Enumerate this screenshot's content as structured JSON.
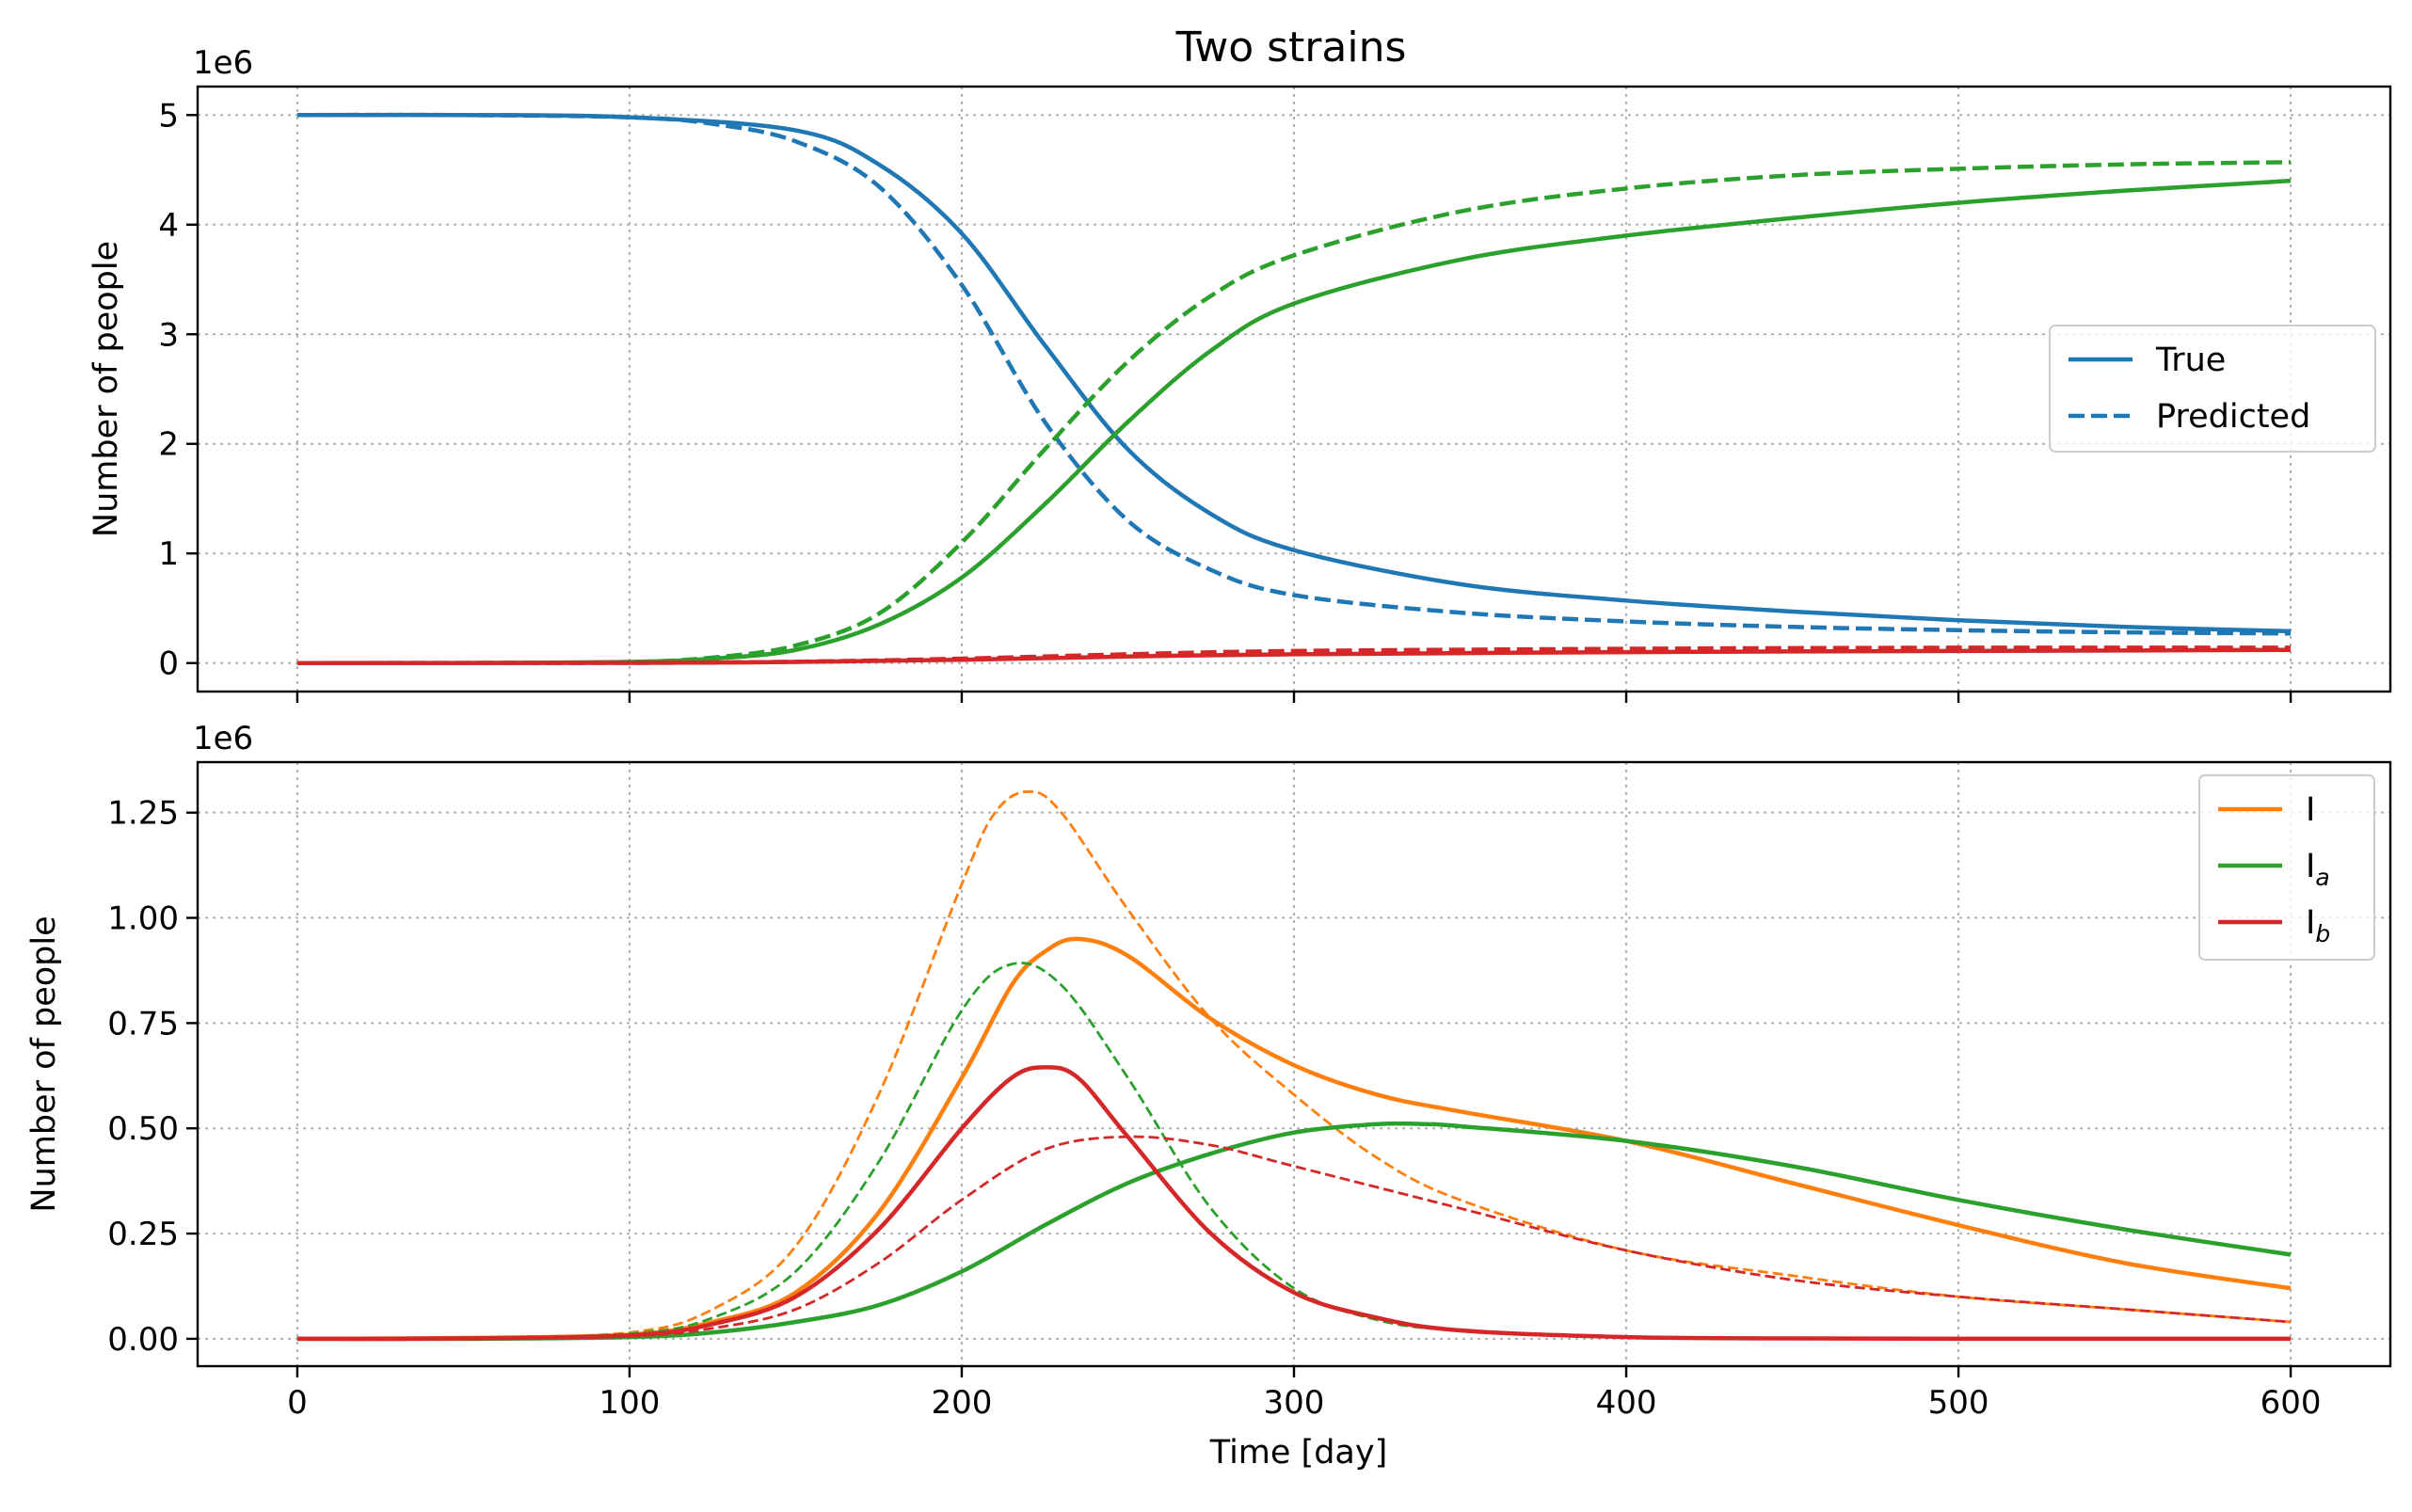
{
  "figure": {
    "title": "Two strains"
  },
  "colors": {
    "blue": "#1f77b4",
    "orange": "#ff7f0e",
    "green": "#2ca02c",
    "red": "#d62728"
  },
  "chart_data": [
    {
      "type": "line",
      "title": "Two strains",
      "xlabel": "",
      "ylabel": "Number of people",
      "y_offset_label": "1e6",
      "xlim": [
        -30,
        630
      ],
      "ylim": [
        -0.26,
        5.26
      ],
      "x_ticks": [
        0,
        100,
        200,
        300,
        400,
        500,
        600
      ],
      "x_tick_labels_visible": false,
      "y_ticks": [
        0,
        1,
        2,
        3,
        4,
        5
      ],
      "y_tick_labels": [
        "0",
        "1",
        "2",
        "3",
        "4",
        "5"
      ],
      "grid": true,
      "legend_position": "center-right",
      "legend": [
        {
          "label": "True",
          "style": "solid",
          "color": "#1f77b4"
        },
        {
          "label": "Predicted",
          "style": "dashed",
          "color": "#1f77b4"
        }
      ],
      "series": [
        {
          "color": "#1f77b4",
          "style": "solid",
          "x": [
            0,
            50,
            100,
            150,
            175,
            200,
            225,
            250,
            275,
            300,
            350,
            400,
            450,
            500,
            550,
            600
          ],
          "values": [
            5.0,
            5.0,
            4.98,
            4.86,
            4.55,
            3.92,
            2.9,
            1.95,
            1.36,
            1.03,
            0.72,
            0.57,
            0.47,
            0.39,
            0.33,
            0.29
          ]
        },
        {
          "color": "#1f77b4",
          "style": "dashed",
          "x": [
            0,
            50,
            100,
            125,
            150,
            175,
            200,
            225,
            250,
            275,
            300,
            350,
            400,
            450,
            500,
            550,
            600
          ],
          "values": [
            5.0,
            5.0,
            4.98,
            4.92,
            4.76,
            4.35,
            3.45,
            2.2,
            1.3,
            0.85,
            0.62,
            0.46,
            0.38,
            0.33,
            0.3,
            0.28,
            0.27
          ]
        },
        {
          "color": "#2ca02c",
          "style": "solid",
          "x": [
            0,
            50,
            100,
            125,
            150,
            175,
            200,
            225,
            250,
            275,
            300,
            350,
            400,
            450,
            500,
            550,
            600
          ],
          "values": [
            0.0,
            0.0,
            0.01,
            0.04,
            0.12,
            0.35,
            0.78,
            1.45,
            2.2,
            2.85,
            3.28,
            3.68,
            3.9,
            4.06,
            4.2,
            4.31,
            4.4
          ]
        },
        {
          "color": "#2ca02c",
          "style": "dashed",
          "x": [
            0,
            50,
            100,
            125,
            150,
            175,
            200,
            225,
            250,
            275,
            300,
            350,
            400,
            450,
            500,
            550,
            600
          ],
          "values": [
            0.0,
            0.0,
            0.01,
            0.05,
            0.16,
            0.45,
            1.1,
            1.95,
            2.75,
            3.35,
            3.72,
            4.12,
            4.33,
            4.45,
            4.51,
            4.55,
            4.57
          ]
        },
        {
          "color": "#d62728",
          "style": "solid",
          "x": [
            0,
            100,
            150,
            200,
            250,
            300,
            400,
            500,
            600
          ],
          "values": [
            0.0,
            0.002,
            0.01,
            0.03,
            0.06,
            0.08,
            0.1,
            0.11,
            0.12
          ]
        },
        {
          "color": "#d62728",
          "style": "dashed",
          "x": [
            0,
            100,
            150,
            200,
            250,
            300,
            400,
            500,
            600
          ],
          "values": [
            0.0,
            0.002,
            0.012,
            0.04,
            0.08,
            0.11,
            0.13,
            0.14,
            0.14
          ]
        }
      ]
    },
    {
      "type": "line",
      "title": "",
      "xlabel": "Time [day]",
      "ylabel": "Number of people",
      "y_offset_label": "1e6",
      "xlim": [
        -30,
        630
      ],
      "ylim": [
        -0.065,
        1.37
      ],
      "x_ticks": [
        0,
        100,
        200,
        300,
        400,
        500,
        600
      ],
      "x_tick_labels": [
        "0",
        "100",
        "200",
        "300",
        "400",
        "500",
        "600"
      ],
      "y_ticks": [
        0,
        0.25,
        0.5,
        0.75,
        1.0,
        1.25
      ],
      "y_tick_labels": [
        "0.00",
        "0.25",
        "0.50",
        "0.75",
        "1.00",
        "1.25"
      ],
      "grid": true,
      "legend_position": "top-right",
      "legend": [
        {
          "label": "I",
          "sub": "",
          "style": "solid",
          "color": "#ff7f0e"
        },
        {
          "label": "I",
          "sub": "a",
          "style": "solid",
          "color": "#2ca02c"
        },
        {
          "label": "I",
          "sub": "b",
          "style": "solid",
          "color": "#d62728"
        }
      ],
      "series": [
        {
          "color": "#ff7f0e",
          "style": "solid",
          "width": 4.5,
          "x": [
            0,
            50,
            100,
            125,
            150,
            175,
            200,
            215,
            225,
            235,
            250,
            275,
            300,
            325,
            350,
            400,
            450,
            500,
            550,
            600
          ],
          "values": [
            0.0,
            0.002,
            0.01,
            0.04,
            0.11,
            0.3,
            0.62,
            0.84,
            0.92,
            0.95,
            0.91,
            0.76,
            0.65,
            0.58,
            0.54,
            0.47,
            0.37,
            0.27,
            0.18,
            0.12
          ]
        },
        {
          "color": "#ff7f0e",
          "style": "dashed",
          "width": 2.8,
          "x": [
            0,
            50,
            100,
            125,
            150,
            175,
            200,
            210,
            220,
            230,
            250,
            275,
            300,
            325,
            350,
            400,
            450,
            500,
            550,
            600
          ],
          "values": [
            0.0,
            0.002,
            0.015,
            0.07,
            0.22,
            0.58,
            1.08,
            1.25,
            1.3,
            1.25,
            1.02,
            0.76,
            0.58,
            0.43,
            0.33,
            0.21,
            0.15,
            0.1,
            0.07,
            0.04
          ]
        },
        {
          "color": "#2ca02c",
          "style": "solid",
          "width": 4.5,
          "x": [
            0,
            50,
            100,
            125,
            150,
            175,
            200,
            225,
            250,
            275,
            300,
            325,
            340,
            350,
            400,
            450,
            500,
            550,
            600
          ],
          "values": [
            0.0,
            0.0,
            0.004,
            0.015,
            0.04,
            0.08,
            0.16,
            0.27,
            0.37,
            0.44,
            0.49,
            0.51,
            0.51,
            0.505,
            0.47,
            0.41,
            0.33,
            0.26,
            0.2
          ]
        },
        {
          "color": "#2ca02c",
          "style": "dashed",
          "width": 2.8,
          "x": [
            0,
            50,
            100,
            125,
            150,
            175,
            200,
            215,
            230,
            250,
            275,
            300,
            325,
            350,
            400,
            450,
            500,
            550,
            600
          ],
          "values": [
            0.0,
            0.002,
            0.012,
            0.05,
            0.16,
            0.42,
            0.78,
            0.89,
            0.84,
            0.62,
            0.31,
            0.12,
            0.045,
            0.02,
            0.004,
            0.001,
            0.0,
            0.0,
            0.0
          ]
        },
        {
          "color": "#d62728",
          "style": "solid",
          "width": 4.5,
          "x": [
            0,
            50,
            100,
            125,
            150,
            175,
            200,
            215,
            225,
            235,
            250,
            275,
            300,
            325,
            350,
            400,
            450,
            500,
            550,
            600
          ],
          "values": [
            0.0,
            0.001,
            0.008,
            0.035,
            0.1,
            0.26,
            0.5,
            0.62,
            0.645,
            0.62,
            0.48,
            0.25,
            0.11,
            0.05,
            0.02,
            0.004,
            0.001,
            0.0,
            0.0,
            0.0
          ]
        },
        {
          "color": "#d62728",
          "style": "dashed",
          "width": 2.8,
          "x": [
            0,
            50,
            100,
            125,
            150,
            175,
            200,
            225,
            250,
            275,
            300,
            350,
            400,
            450,
            500,
            550,
            600
          ],
          "values": [
            0.0,
            0.001,
            0.006,
            0.025,
            0.07,
            0.18,
            0.33,
            0.45,
            0.48,
            0.46,
            0.41,
            0.31,
            0.21,
            0.14,
            0.1,
            0.07,
            0.04
          ]
        }
      ]
    }
  ]
}
